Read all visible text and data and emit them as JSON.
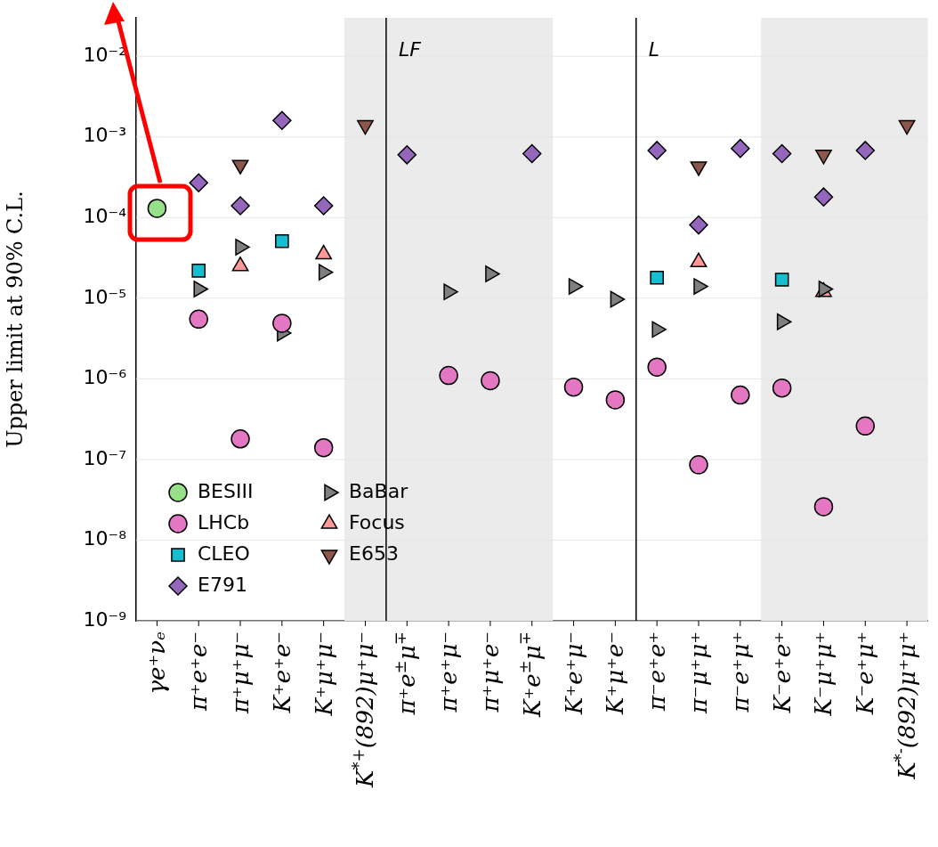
{
  "chart_data": {
    "type": "scatter",
    "ylabel": "Upper limit at 90% C.L.",
    "categories": [
      "γe⁺νₑ",
      "π⁺e⁺e⁻",
      "π⁺μ⁺μ⁻",
      "K⁺e⁺e⁻",
      "K⁺μ⁺μ⁻",
      "K$^{*+}$(892)μ⁺μ⁻",
      "π⁺e$^{±}$μ$^{∓}$",
      "π⁺e⁺μ⁻",
      "π⁺μ⁺e⁻",
      "K⁺e$^{±}$μ$^{∓}$",
      "K⁺e⁺μ⁻",
      "K⁺μ⁺e⁻",
      "π⁻e⁺e⁺",
      "π⁻μ⁺μ⁺",
      "π⁻e⁺μ⁺",
      "K⁻e⁺e⁺",
      "K⁻μ⁺μ⁺",
      "K⁻e⁺μ⁺",
      "K$^{*-}$(892)μ⁺μ⁺"
    ],
    "series": [
      {
        "name": "BESIII",
        "color": "#98df8a",
        "marker": "circle",
        "values": [
          0.00013,
          null,
          null,
          null,
          null,
          null,
          null,
          null,
          null,
          null,
          null,
          null,
          null,
          null,
          null,
          null,
          null,
          null,
          null
        ]
      },
      {
        "name": "LHCb",
        "color": "#e377c2",
        "marker": "circle",
        "values": [
          null,
          5.5e-06,
          1.8e-07,
          4.9e-06,
          1.4e-07,
          null,
          null,
          1.1e-06,
          9.5e-07,
          null,
          7.9e-07,
          5.5e-07,
          1.4e-06,
          8.6e-08,
          6.3e-07,
          7.7e-07,
          2.6e-08,
          2.6e-07,
          null
        ]
      },
      {
        "name": "CLEO",
        "color": "#17becf",
        "marker": "square",
        "values": [
          null,
          2.2e-05,
          null,
          5.1e-05,
          null,
          null,
          null,
          null,
          null,
          null,
          null,
          null,
          1.8e-05,
          null,
          null,
          1.7e-05,
          null,
          null,
          null
        ]
      },
      {
        "name": "E791",
        "color": "#9467bd",
        "marker": "diamond",
        "values": [
          null,
          0.00027,
          0.00014,
          0.0016,
          0.00014,
          null,
          0.0006,
          null,
          null,
          0.00062,
          null,
          null,
          0.00068,
          8.1e-05,
          0.00072,
          0.00062,
          0.00018,
          0.00068,
          null
        ]
      },
      {
        "name": "BaBar",
        "color": "#7f7f7f",
        "marker": "triangle",
        "values": [
          null,
          1.3e-05,
          4.3e-05,
          3.7e-06,
          2.1e-05,
          null,
          null,
          1.2e-05,
          2e-05,
          null,
          1.4e-05,
          9.7e-06,
          4.1e-06,
          1.4e-05,
          null,
          5.1e-06,
          1.3e-05,
          null,
          null
        ]
      },
      {
        "name": "Focus",
        "color": "#ff9896",
        "marker": "triangle",
        "values": [
          null,
          null,
          2.5e-05,
          null,
          3.5e-05,
          null,
          null,
          null,
          null,
          null,
          null,
          null,
          null,
          2.8e-05,
          null,
          null,
          1.2e-05,
          null,
          null
        ]
      },
      {
        "name": "E653",
        "color": "#8c564b",
        "marker": "triangle",
        "values": [
          null,
          null,
          0.00045,
          null,
          null,
          0.0014,
          null,
          null,
          null,
          null,
          null,
          null,
          null,
          0.00043,
          null,
          null,
          0.0006,
          null,
          0.0014
        ]
      }
    ],
    "log": "y",
    "ylim": [
      1e-09,
      0.03
    ],
    "yticks": [
      {
        "value": 1e-09,
        "label": "10⁻⁹"
      },
      {
        "value": 1e-08,
        "label": "10⁻⁸"
      },
      {
        "value": 1e-07,
        "label": "10⁻⁷"
      },
      {
        "value": 1e-06,
        "label": "10⁻⁶"
      },
      {
        "value": 1e-05,
        "label": "10⁻⁵"
      },
      {
        "value": 0.0001,
        "label": "10⁻⁴"
      },
      {
        "value": 0.001,
        "label": "10⁻³"
      },
      {
        "value": 0.01,
        "label": "10⁻²"
      }
    ],
    "grid": "y",
    "legend": "bottom left",
    "bands": [
      {
        "axis": "x",
        "from": "K$^{*+}$(892)μ⁺μ⁻",
        "to": "K$^{*+}$(892)μ⁺μ⁻",
        "color": "#ebebeb"
      },
      {
        "axis": "x",
        "from": "π⁺e$^{±}$μ$^{∓}$",
        "to": "K⁺e$^{±}$μ$^{∓}$",
        "color": "#ebebeb"
      },
      {
        "axis": "x",
        "from": "K⁻e⁺e⁺",
        "to": "K$^{*-}$(892)μ⁺μ⁺",
        "color": "#ebebeb"
      }
    ],
    "annotations": [
      "LF",
      "L"
    ]
  }
}
